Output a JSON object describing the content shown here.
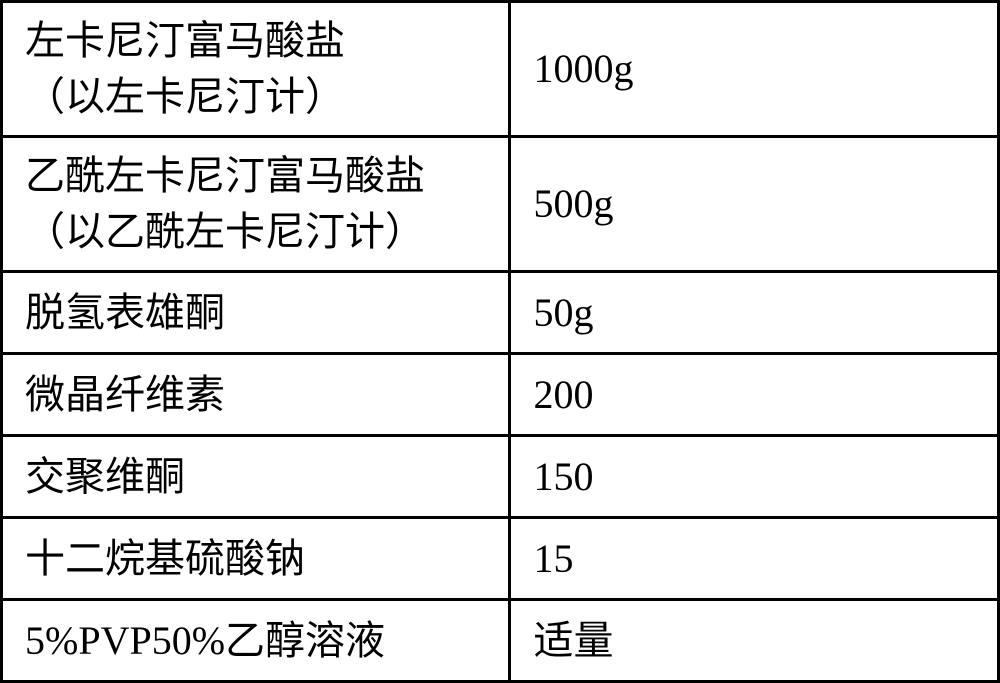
{
  "table": {
    "border_color": "#000000",
    "background_color": "#ffffff",
    "text_color": "#000000",
    "font_size_pt": 30,
    "font_family": "SimSun",
    "column_widths_pct": [
      51,
      49
    ],
    "rows": [
      {
        "height": "tall",
        "label": "左卡尼汀富马酸盐\n（以左卡尼汀计）",
        "value": "1000g"
      },
      {
        "height": "tall",
        "label": "乙酰左卡尼汀富马酸盐\n（以乙酰左卡尼汀计）",
        "value": "500g"
      },
      {
        "height": "short",
        "label": "脱氢表雄酮",
        "value": "50g"
      },
      {
        "height": "short",
        "label": "微晶纤维素",
        "value": "200"
      },
      {
        "height": "short",
        "label": "交聚维酮",
        "value": "150"
      },
      {
        "height": "short",
        "label": "十二烷基硫酸钠",
        "value": "15"
      },
      {
        "height": "short",
        "label": "5%PVP50%乙醇溶液",
        "value": "适量"
      }
    ]
  }
}
